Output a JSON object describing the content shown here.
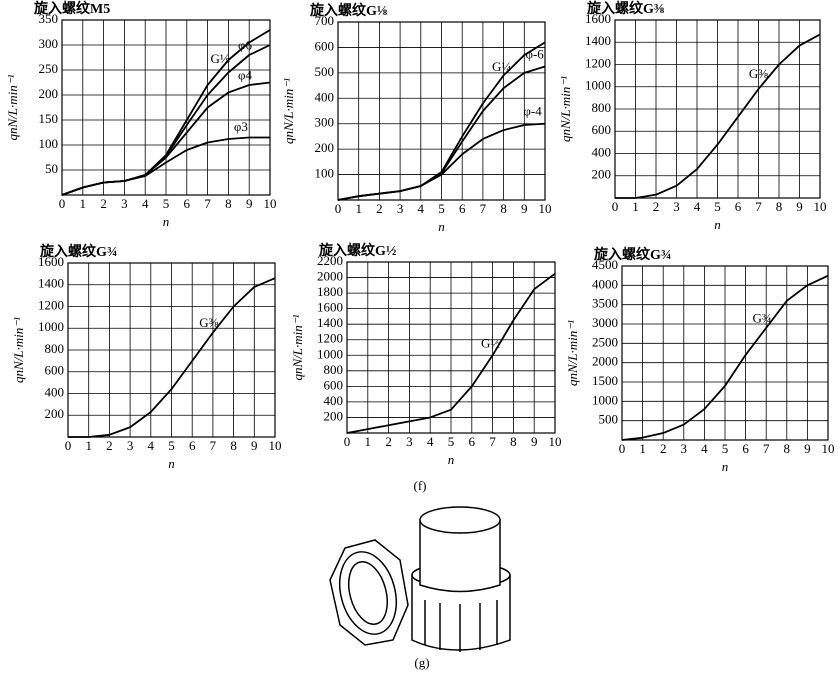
{
  "chart_data": [
    {
      "type": "line",
      "title": "旋入螺纹M5",
      "x_label": "n",
      "y_label": "qnN/L·min⁻¹",
      "x": [
        0,
        1,
        2,
        3,
        4,
        5,
        6,
        7,
        8,
        9,
        10
      ],
      "xlim": [
        0,
        10
      ],
      "xticks": [
        0,
        1,
        2,
        3,
        4,
        5,
        6,
        7,
        8,
        9,
        10
      ],
      "ylim": [
        0,
        350
      ],
      "yticks": [
        50,
        100,
        150,
        200,
        250,
        300,
        350
      ],
      "grid": true,
      "series": [
        {
          "name": "G⅛",
          "color": "#000",
          "values": [
            0,
            15,
            25,
            28,
            40,
            80,
            150,
            220,
            270,
            305,
            330
          ]
        },
        {
          "name": "φ6",
          "color": "#000",
          "values": [
            0,
            15,
            25,
            28,
            40,
            78,
            140,
            200,
            245,
            280,
            300
          ]
        },
        {
          "name": "φ4",
          "color": "#000",
          "values": [
            0,
            15,
            25,
            28,
            40,
            75,
            125,
            175,
            205,
            220,
            225
          ]
        },
        {
          "name": "φ3",
          "color": "#000",
          "values": [
            0,
            15,
            25,
            28,
            38,
            65,
            90,
            105,
            112,
            115,
            115
          ]
        }
      ]
    },
    {
      "type": "line",
      "title": "旋入螺纹G⅛",
      "x_label": "n",
      "y_label": "qnN/L·min⁻¹",
      "x": [
        0,
        1,
        2,
        3,
        4,
        5,
        6,
        7,
        8,
        9,
        10
      ],
      "xlim": [
        0,
        10
      ],
      "xticks": [
        0,
        1,
        2,
        3,
        4,
        5,
        6,
        7,
        8,
        9,
        10
      ],
      "ylim": [
        0,
        700
      ],
      "yticks": [
        100,
        200,
        300,
        400,
        500,
        600,
        700
      ],
      "grid": true,
      "series": [
        {
          "name": "G¼",
          "color": "#000",
          "values": [
            0,
            15,
            25,
            35,
            55,
            110,
            250,
            380,
            490,
            570,
            620
          ]
        },
        {
          "name": "φ-6",
          "color": "#000",
          "values": [
            0,
            15,
            25,
            35,
            55,
            105,
            230,
            350,
            440,
            500,
            525
          ]
        },
        {
          "name": "φ-4",
          "color": "#000",
          "values": [
            0,
            15,
            25,
            35,
            55,
            100,
            180,
            240,
            275,
            295,
            300
          ]
        }
      ]
    },
    {
      "type": "line",
      "title": "旋入螺纹G⅜",
      "x_label": "n",
      "y_label": "qnN/L·min⁻¹",
      "x": [
        0,
        1,
        2,
        3,
        4,
        5,
        6,
        7,
        8,
        9,
        10
      ],
      "xlim": [
        0,
        10
      ],
      "xticks": [
        0,
        1,
        2,
        3,
        4,
        5,
        6,
        7,
        8,
        9,
        10
      ],
      "ylim": [
        0,
        1600
      ],
      "yticks": [
        200,
        400,
        600,
        800,
        1000,
        1200,
        1400,
        1600
      ],
      "grid": true,
      "series": [
        {
          "name": "G⅜",
          "color": "#000",
          "values": [
            0,
            0,
            30,
            110,
            260,
            480,
            730,
            980,
            1200,
            1370,
            1470
          ]
        }
      ]
    },
    {
      "type": "line",
      "title": "旋入螺纹G¾",
      "x_label": "n",
      "y_label": "qnN/L·min⁻¹",
      "x": [
        0,
        1,
        2,
        3,
        4,
        5,
        6,
        7,
        8,
        9,
        10
      ],
      "xlim": [
        0,
        10
      ],
      "xticks": [
        0,
        1,
        2,
        3,
        4,
        5,
        6,
        7,
        8,
        9,
        10
      ],
      "ylim": [
        0,
        1600
      ],
      "yticks": [
        200,
        400,
        600,
        800,
        1000,
        1200,
        1400,
        1600
      ],
      "grid": true,
      "series": [
        {
          "name": "G⅜",
          "color": "#000",
          "values": [
            0,
            0,
            20,
            90,
            230,
            440,
            700,
            960,
            1200,
            1380,
            1460
          ]
        }
      ]
    },
    {
      "type": "line",
      "title": "旋入螺纹G½",
      "x_label": "n",
      "y_label": "qnN/L·min⁻¹",
      "x": [
        0,
        1,
        2,
        3,
        4,
        5,
        6,
        7,
        8,
        9,
        10
      ],
      "xlim": [
        0,
        10
      ],
      "xticks": [
        0,
        1,
        2,
        3,
        4,
        5,
        6,
        7,
        8,
        9,
        10
      ],
      "ylim": [
        0,
        2200
      ],
      "yticks": [
        200,
        400,
        600,
        800,
        1000,
        1200,
        1400,
        1600,
        1800,
        2000,
        2200
      ],
      "grid": true,
      "series": [
        {
          "name": "G½",
          "color": "#000",
          "values": [
            0,
            50,
            100,
            150,
            200,
            300,
            600,
            1000,
            1450,
            1850,
            2050
          ]
        }
      ]
    },
    {
      "type": "line",
      "title": "旋入螺纹G¾",
      "x_label": "n",
      "y_label": "qnN/L·min⁻¹",
      "x": [
        0,
        1,
        2,
        3,
        4,
        5,
        6,
        7,
        8,
        9,
        10
      ],
      "xlim": [
        0,
        10
      ],
      "xticks": [
        0,
        1,
        2,
        3,
        4,
        5,
        6,
        7,
        8,
        9,
        10
      ],
      "ylim": [
        0,
        4500
      ],
      "yticks": [
        500,
        1000,
        1500,
        2000,
        2500,
        3000,
        3500,
        4000,
        4500
      ],
      "grid": true,
      "series": [
        {
          "name": "G¾",
          "color": "#000",
          "values": [
            0,
            60,
            180,
            400,
            800,
            1400,
            2200,
            2900,
            3600,
            4000,
            4250
          ]
        }
      ]
    }
  ],
  "captions": [
    "(f)",
    "(g)"
  ]
}
